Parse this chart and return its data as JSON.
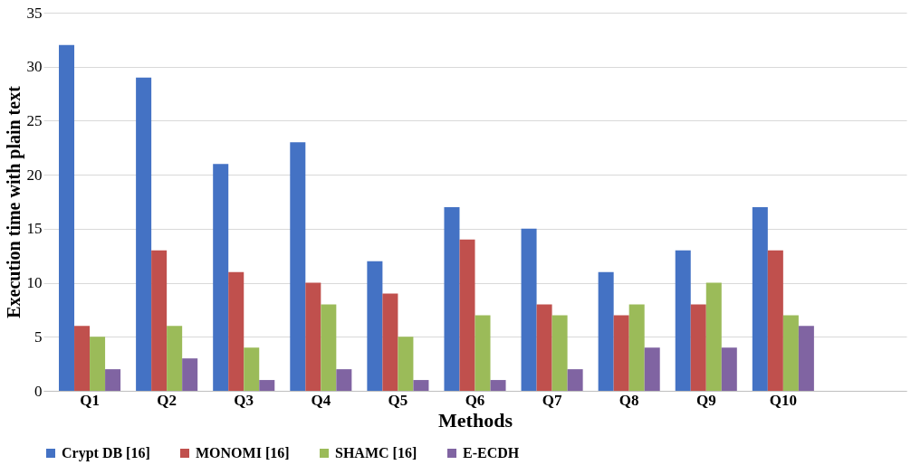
{
  "chart_data": {
    "type": "bar",
    "xlabel": "Methods",
    "ylabel": "Execution time with plain text",
    "categories": [
      "Q1",
      "Q2",
      "Q3",
      "Q4",
      "Q5",
      "Q6",
      "Q7",
      "Q8",
      "Q9",
      "Q10",
      null
    ],
    "series": [
      {
        "name": "Crypt DB [16]",
        "color": "#4472c4",
        "values": [
          32,
          29,
          21,
          23,
          12,
          17,
          15,
          11,
          13,
          17,
          null
        ]
      },
      {
        "name": "MONOMI [16]",
        "color": "#c0504d",
        "values": [
          6,
          13,
          11,
          10,
          9,
          14,
          8,
          7,
          8,
          13,
          null
        ]
      },
      {
        "name": "SHAMC [16]",
        "color": "#9bbb59",
        "values": [
          5,
          6,
          4,
          8,
          5,
          7,
          7,
          8,
          10,
          7,
          null
        ]
      },
      {
        "name": "E-ECDH",
        "color": "#8064a2",
        "values": [
          2,
          3,
          1,
          2,
          1,
          1,
          2,
          4,
          4,
          6,
          null
        ]
      }
    ],
    "ylim": [
      0,
      35
    ],
    "yticks": [
      0,
      5,
      10,
      15,
      20,
      25,
      30,
      35
    ],
    "grid": "y",
    "legend": "bottom"
  }
}
